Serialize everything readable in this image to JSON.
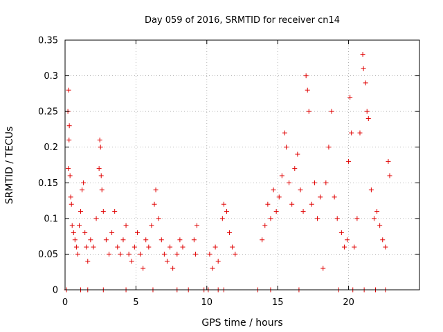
{
  "chart_data": {
    "type": "scatter",
    "title": "Day 059 of 2016, SRMTID for receiver cn14",
    "xlabel": "GPS time / hours",
    "ylabel": "SRMTID / TECUs",
    "xlim": [
      0,
      25
    ],
    "ylim": [
      0,
      0.35
    ],
    "xticks": [
      0,
      5,
      10,
      15,
      20
    ],
    "xtick_labels": [
      "0",
      "5",
      "10",
      "15",
      "20"
    ],
    "yticks": [
      0,
      0.05,
      0.1,
      0.15,
      0.2,
      0.25,
      0.3,
      0.35
    ],
    "ytick_labels": [
      "0",
      "0.05",
      "0.1",
      "0.15",
      "0.2",
      "0.25",
      "0.3",
      "0.35"
    ],
    "grid": true,
    "marker": "+",
    "color": "#e00000",
    "series": [
      {
        "name": "SRMTID",
        "points": [
          [
            0.2,
            0.25
          ],
          [
            0.25,
            0.28
          ],
          [
            0.3,
            0.23
          ],
          [
            0.28,
            0.21
          ],
          [
            0.22,
            0.17
          ],
          [
            0.35,
            0.16
          ],
          [
            0.4,
            0.13
          ],
          [
            0.45,
            0.12
          ],
          [
            0.5,
            0.09
          ],
          [
            0.6,
            0.08
          ],
          [
            0.7,
            0.07
          ],
          [
            0.8,
            0.06
          ],
          [
            0.9,
            0.05
          ],
          [
            1.0,
            0.09
          ],
          [
            1.1,
            0.11
          ],
          [
            1.2,
            0.14
          ],
          [
            1.3,
            0.15
          ],
          [
            1.4,
            0.08
          ],
          [
            1.5,
            0.06
          ],
          [
            1.6,
            0.04
          ],
          [
            1.8,
            0.07
          ],
          [
            2.0,
            0.06
          ],
          [
            2.2,
            0.1
          ],
          [
            2.4,
            0.17
          ],
          [
            2.45,
            0.21
          ],
          [
            2.5,
            0.2
          ],
          [
            2.55,
            0.16
          ],
          [
            2.6,
            0.14
          ],
          [
            2.7,
            0.11
          ],
          [
            2.9,
            0.07
          ],
          [
            3.1,
            0.05
          ],
          [
            3.3,
            0.08
          ],
          [
            3.5,
            0.11
          ],
          [
            3.7,
            0.06
          ],
          [
            3.9,
            0.05
          ],
          [
            4.1,
            0.07
          ],
          [
            4.3,
            0.09
          ],
          [
            4.5,
            0.05
          ],
          [
            4.7,
            0.04
          ],
          [
            4.9,
            0.06
          ],
          [
            5.1,
            0.08
          ],
          [
            5.3,
            0.05
          ],
          [
            5.5,
            0.03
          ],
          [
            5.7,
            0.07
          ],
          [
            5.9,
            0.06
          ],
          [
            6.1,
            0.09
          ],
          [
            6.3,
            0.12
          ],
          [
            6.4,
            0.14
          ],
          [
            6.6,
            0.1
          ],
          [
            6.8,
            0.07
          ],
          [
            7.0,
            0.05
          ],
          [
            7.2,
            0.04
          ],
          [
            7.4,
            0.06
          ],
          [
            7.6,
            0.03
          ],
          [
            7.9,
            0.05
          ],
          [
            8.1,
            0.07
          ],
          [
            8.3,
            0.06
          ],
          [
            9.1,
            0.07
          ],
          [
            9.2,
            0.05
          ],
          [
            9.3,
            0.09
          ],
          [
            10.2,
            0.05
          ],
          [
            10.4,
            0.03
          ],
          [
            10.6,
            0.06
          ],
          [
            10.8,
            0.04
          ],
          [
            11.1,
            0.1
          ],
          [
            11.2,
            0.12
          ],
          [
            11.4,
            0.11
          ],
          [
            11.6,
            0.08
          ],
          [
            11.8,
            0.06
          ],
          [
            12.0,
            0.05
          ],
          [
            13.9,
            0.07
          ],
          [
            14.1,
            0.09
          ],
          [
            14.3,
            0.12
          ],
          [
            14.5,
            0.1
          ],
          [
            14.7,
            0.14
          ],
          [
            14.9,
            0.11
          ],
          [
            15.1,
            0.13
          ],
          [
            15.3,
            0.16
          ],
          [
            15.5,
            0.22
          ],
          [
            15.6,
            0.2
          ],
          [
            15.8,
            0.15
          ],
          [
            16.0,
            0.12
          ],
          [
            16.2,
            0.17
          ],
          [
            16.4,
            0.19
          ],
          [
            16.6,
            0.14
          ],
          [
            16.8,
            0.11
          ],
          [
            17.0,
            0.3
          ],
          [
            17.1,
            0.28
          ],
          [
            17.2,
            0.25
          ],
          [
            17.4,
            0.12
          ],
          [
            17.6,
            0.15
          ],
          [
            17.8,
            0.1
          ],
          [
            18.0,
            0.13
          ],
          [
            18.2,
            0.03
          ],
          [
            18.4,
            0.15
          ],
          [
            18.6,
            0.2
          ],
          [
            18.8,
            0.25
          ],
          [
            19.0,
            0.13
          ],
          [
            19.2,
            0.1
          ],
          [
            19.5,
            0.08
          ],
          [
            19.7,
            0.06
          ],
          [
            19.9,
            0.07
          ],
          [
            20.0,
            0.18
          ],
          [
            20.1,
            0.27
          ],
          [
            20.2,
            0.22
          ],
          [
            20.4,
            0.06
          ],
          [
            20.6,
            0.1
          ],
          [
            20.8,
            0.22
          ],
          [
            21.0,
            0.33
          ],
          [
            21.05,
            0.31
          ],
          [
            21.2,
            0.29
          ],
          [
            21.3,
            0.25
          ],
          [
            21.4,
            0.24
          ],
          [
            21.6,
            0.14
          ],
          [
            21.8,
            0.1
          ],
          [
            22.0,
            0.11
          ],
          [
            22.2,
            0.09
          ],
          [
            22.4,
            0.07
          ],
          [
            22.6,
            0.06
          ],
          [
            22.8,
            0.18
          ],
          [
            22.9,
            0.16
          ]
        ]
      }
    ],
    "zero_markers_x": [
      0.1,
      1.1,
      1.6,
      2.7,
      4.3,
      6.2,
      7.9,
      8.7,
      9.8,
      10.1,
      10.8,
      11.2,
      13.6,
      14.5,
      16.5,
      19.3,
      20.3,
      21.1,
      21.9,
      22.6
    ]
  }
}
